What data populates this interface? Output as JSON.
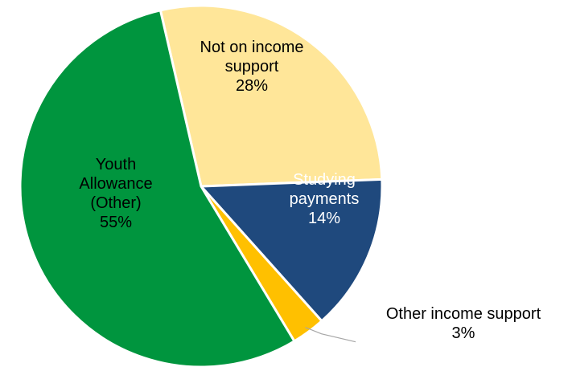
{
  "chart_data": {
    "type": "pie",
    "slices": [
      {
        "label_lines": [
          "Not on income",
          "support"
        ],
        "pct_text": "28%",
        "value": 28,
        "color": "#FFE699",
        "text_color": "#000000"
      },
      {
        "label_lines": [
          "Studying",
          "payments"
        ],
        "pct_text": "14%",
        "value": 14,
        "color": "#1F497D",
        "text_color": "#FFFFFF"
      },
      {
        "label_lines": [
          "Other income support"
        ],
        "pct_text": "3%",
        "value": 3,
        "color": "#FFC000",
        "text_color": "#000000"
      },
      {
        "label_lines": [
          "Youth",
          "Allowance",
          "(Other)"
        ],
        "pct_text": "55%",
        "value": 55,
        "color": "#00953E",
        "text_color": "#000000"
      }
    ],
    "start_angle_deg": -13,
    "clockwise": true,
    "title": "",
    "legend": "none",
    "border_color": "#FFFFFF",
    "leader_line_color": "#A6A6A6"
  }
}
